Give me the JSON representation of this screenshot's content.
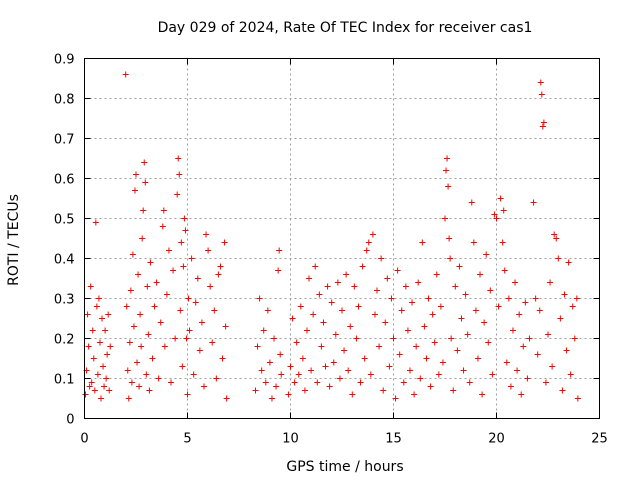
{
  "chart_data": {
    "type": "scatter",
    "title": "Day 029 of 2024, Rate Of TEC Index for receiver cas1",
    "xlabel": "GPS time / hours",
    "ylabel": "ROTI / TECUs",
    "xlim": [
      0,
      25
    ],
    "ylim": [
      0,
      0.9
    ],
    "xticks": [
      0,
      5,
      10,
      15,
      20,
      25
    ],
    "yticks": [
      0,
      0.1,
      0.2,
      0.3,
      0.4,
      0.5,
      0.6,
      0.7,
      0.8,
      0.9
    ],
    "grid": true,
    "marker": "+",
    "color": "#ff0000",
    "series": [
      {
        "name": "cas1 ROTI",
        "points": [
          [
            0.05,
            0.06
          ],
          [
            0.1,
            0.12
          ],
          [
            0.15,
            0.26
          ],
          [
            0.2,
            0.18
          ],
          [
            0.25,
            0.08
          ],
          [
            0.3,
            0.33
          ],
          [
            0.35,
            0.09
          ],
          [
            0.4,
            0.22
          ],
          [
            0.45,
            0.15
          ],
          [
            0.5,
            0.07
          ],
          [
            0.55,
            0.49
          ],
          [
            0.6,
            0.28
          ],
          [
            0.65,
            0.11
          ],
          [
            0.7,
            0.3
          ],
          [
            0.75,
            0.19
          ],
          [
            0.8,
            0.05
          ],
          [
            0.85,
            0.25
          ],
          [
            0.9,
            0.13
          ],
          [
            0.95,
            0.08
          ],
          [
            1.0,
            0.22
          ],
          [
            1.05,
            0.1
          ],
          [
            1.1,
            0.16
          ],
          [
            1.15,
            0.26
          ],
          [
            1.2,
            0.07
          ],
          [
            1.25,
            0.18
          ],
          [
            2.0,
            0.86
          ],
          [
            2.05,
            0.28
          ],
          [
            2.1,
            0.12
          ],
          [
            2.15,
            0.05
          ],
          [
            2.2,
            0.19
          ],
          [
            2.25,
            0.32
          ],
          [
            2.3,
            0.09
          ],
          [
            2.35,
            0.41
          ],
          [
            2.4,
            0.23
          ],
          [
            2.45,
            0.57
          ],
          [
            2.5,
            0.61
          ],
          [
            2.55,
            0.14
          ],
          [
            2.6,
            0.36
          ],
          [
            2.65,
            0.08
          ],
          [
            2.7,
            0.26
          ],
          [
            2.75,
            0.18
          ],
          [
            2.8,
            0.45
          ],
          [
            2.85,
            0.52
          ],
          [
            2.9,
            0.64
          ],
          [
            2.95,
            0.59
          ],
          [
            3.0,
            0.11
          ],
          [
            3.05,
            0.33
          ],
          [
            3.1,
            0.21
          ],
          [
            3.15,
            0.07
          ],
          [
            3.2,
            0.39
          ],
          [
            3.3,
            0.15
          ],
          [
            3.4,
            0.28
          ],
          [
            3.5,
            0.34
          ],
          [
            3.6,
            0.1
          ],
          [
            3.7,
            0.24
          ],
          [
            3.8,
            0.48
          ],
          [
            3.85,
            0.52
          ],
          [
            3.9,
            0.18
          ],
          [
            4.0,
            0.31
          ],
          [
            4.1,
            0.42
          ],
          [
            4.2,
            0.09
          ],
          [
            4.3,
            0.37
          ],
          [
            4.4,
            0.2
          ],
          [
            4.5,
            0.56
          ],
          [
            4.55,
            0.65
          ],
          [
            4.6,
            0.61
          ],
          [
            4.65,
            0.27
          ],
          [
            4.7,
            0.44
          ],
          [
            4.75,
            0.13
          ],
          [
            4.8,
            0.38
          ],
          [
            4.85,
            0.5
          ],
          [
            4.9,
            0.47
          ],
          [
            4.95,
            0.2
          ],
          [
            5.0,
            0.06
          ],
          [
            5.05,
            0.3
          ],
          [
            5.1,
            0.22
          ],
          [
            5.2,
            0.4
          ],
          [
            5.3,
            0.11
          ],
          [
            5.4,
            0.29
          ],
          [
            5.5,
            0.35
          ],
          [
            5.6,
            0.17
          ],
          [
            5.7,
            0.24
          ],
          [
            5.8,
            0.08
          ],
          [
            5.9,
            0.46
          ],
          [
            6.0,
            0.42
          ],
          [
            6.1,
            0.33
          ],
          [
            6.2,
            0.19
          ],
          [
            6.3,
            0.27
          ],
          [
            6.4,
            0.1
          ],
          [
            6.5,
            0.36
          ],
          [
            6.6,
            0.38
          ],
          [
            6.7,
            0.15
          ],
          [
            6.8,
            0.44
          ],
          [
            6.85,
            0.23
          ],
          [
            6.9,
            0.05
          ],
          [
            8.3,
            0.07
          ],
          [
            8.4,
            0.18
          ],
          [
            8.5,
            0.3
          ],
          [
            8.6,
            0.12
          ],
          [
            8.7,
            0.22
          ],
          [
            8.8,
            0.09
          ],
          [
            8.9,
            0.27
          ],
          [
            9.0,
            0.14
          ],
          [
            9.1,
            0.05
          ],
          [
            9.2,
            0.2
          ],
          [
            9.3,
            0.08
          ],
          [
            9.4,
            0.37
          ],
          [
            9.45,
            0.42
          ],
          [
            9.5,
            0.16
          ],
          [
            9.55,
            0.11
          ],
          [
            9.9,
            0.06
          ],
          [
            10.0,
            0.13
          ],
          [
            10.1,
            0.25
          ],
          [
            10.2,
            0.09
          ],
          [
            10.3,
            0.19
          ],
          [
            10.4,
            0.11
          ],
          [
            10.5,
            0.28
          ],
          [
            10.6,
            0.15
          ],
          [
            10.7,
            0.07
          ],
          [
            10.8,
            0.22
          ],
          [
            10.9,
            0.35
          ],
          [
            11.0,
            0.12
          ],
          [
            11.1,
            0.26
          ],
          [
            11.2,
            0.38
          ],
          [
            11.3,
            0.09
          ],
          [
            11.4,
            0.31
          ],
          [
            11.5,
            0.18
          ],
          [
            11.6,
            0.24
          ],
          [
            11.7,
            0.13
          ],
          [
            11.8,
            0.33
          ],
          [
            11.9,
            0.08
          ],
          [
            12.0,
            0.29
          ],
          [
            12.1,
            0.14
          ],
          [
            12.2,
            0.21
          ],
          [
            12.3,
            0.34
          ],
          [
            12.4,
            0.1
          ],
          [
            12.5,
            0.27
          ],
          [
            12.6,
            0.17
          ],
          [
            12.7,
            0.36
          ],
          [
            12.8,
            0.12
          ],
          [
            12.9,
            0.23
          ],
          [
            13.0,
            0.06
          ],
          [
            13.1,
            0.33
          ],
          [
            13.2,
            0.2
          ],
          [
            13.3,
            0.28
          ],
          [
            13.4,
            0.09
          ],
          [
            13.5,
            0.38
          ],
          [
            13.6,
            0.15
          ],
          [
            13.7,
            0.42
          ],
          [
            13.8,
            0.44
          ],
          [
            13.9,
            0.11
          ],
          [
            14.0,
            0.46
          ],
          [
            14.1,
            0.26
          ],
          [
            14.2,
            0.32
          ],
          [
            14.3,
            0.18
          ],
          [
            14.4,
            0.4
          ],
          [
            14.5,
            0.07
          ],
          [
            14.6,
            0.24
          ],
          [
            14.7,
            0.35
          ],
          [
            14.8,
            0.13
          ],
          [
            14.9,
            0.3
          ],
          [
            15.0,
            0.2
          ],
          [
            15.1,
            0.05
          ],
          [
            15.2,
            0.37
          ],
          [
            15.3,
            0.16
          ],
          [
            15.4,
            0.27
          ],
          [
            15.5,
            0.09
          ],
          [
            15.6,
            0.33
          ],
          [
            15.7,
            0.22
          ],
          [
            15.8,
            0.12
          ],
          [
            15.9,
            0.29
          ],
          [
            16.0,
            0.06
          ],
          [
            16.1,
            0.18
          ],
          [
            16.2,
            0.34
          ],
          [
            16.3,
            0.1
          ],
          [
            16.4,
            0.44
          ],
          [
            16.5,
            0.23
          ],
          [
            16.6,
            0.15
          ],
          [
            16.7,
            0.3
          ],
          [
            16.8,
            0.08
          ],
          [
            16.9,
            0.26
          ],
          [
            17.0,
            0.19
          ],
          [
            17.1,
            0.36
          ],
          [
            17.2,
            0.11
          ],
          [
            17.3,
            0.28
          ],
          [
            17.4,
            0.14
          ],
          [
            17.5,
            0.5
          ],
          [
            17.55,
            0.62
          ],
          [
            17.6,
            0.65
          ],
          [
            17.65,
            0.58
          ],
          [
            17.7,
            0.45
          ],
          [
            17.75,
            0.4
          ],
          [
            17.8,
            0.2
          ],
          [
            17.9,
            0.07
          ],
          [
            18.0,
            0.33
          ],
          [
            18.1,
            0.17
          ],
          [
            18.2,
            0.38
          ],
          [
            18.3,
            0.25
          ],
          [
            18.4,
            0.12
          ],
          [
            18.5,
            0.31
          ],
          [
            18.6,
            0.21
          ],
          [
            18.7,
            0.09
          ],
          [
            18.8,
            0.54
          ],
          [
            18.9,
            0.44
          ],
          [
            19.0,
            0.27
          ],
          [
            19.1,
            0.15
          ],
          [
            19.2,
            0.36
          ],
          [
            19.3,
            0.06
          ],
          [
            19.4,
            0.24
          ],
          [
            19.5,
            0.41
          ],
          [
            19.6,
            0.19
          ],
          [
            19.7,
            0.32
          ],
          [
            19.8,
            0.11
          ],
          [
            19.9,
            0.51
          ],
          [
            20.0,
            0.5
          ],
          [
            20.1,
            0.28
          ],
          [
            20.2,
            0.55
          ],
          [
            20.3,
            0.44
          ],
          [
            20.35,
            0.52
          ],
          [
            20.4,
            0.37
          ],
          [
            20.5,
            0.14
          ],
          [
            20.6,
            0.3
          ],
          [
            20.7,
            0.08
          ],
          [
            20.8,
            0.22
          ],
          [
            20.9,
            0.34
          ],
          [
            21.0,
            0.12
          ],
          [
            21.1,
            0.26
          ],
          [
            21.2,
            0.06
          ],
          [
            21.3,
            0.18
          ],
          [
            21.4,
            0.29
          ],
          [
            21.5,
            0.1
          ],
          [
            21.6,
            0.2
          ],
          [
            21.8,
            0.54
          ],
          [
            21.9,
            0.3
          ],
          [
            22.0,
            0.16
          ],
          [
            22.1,
            0.27
          ],
          [
            22.15,
            0.84
          ],
          [
            22.2,
            0.81
          ],
          [
            22.25,
            0.73
          ],
          [
            22.3,
            0.74
          ],
          [
            22.4,
            0.09
          ],
          [
            22.5,
            0.21
          ],
          [
            22.6,
            0.34
          ],
          [
            22.7,
            0.13
          ],
          [
            22.8,
            0.46
          ],
          [
            22.9,
            0.45
          ],
          [
            23.0,
            0.4
          ],
          [
            23.1,
            0.25
          ],
          [
            23.2,
            0.07
          ],
          [
            23.3,
            0.31
          ],
          [
            23.4,
            0.17
          ],
          [
            23.5,
            0.39
          ],
          [
            23.6,
            0.11
          ],
          [
            23.7,
            0.28
          ],
          [
            23.8,
            0.2
          ],
          [
            23.9,
            0.3
          ],
          [
            23.95,
            0.05
          ]
        ]
      }
    ]
  }
}
